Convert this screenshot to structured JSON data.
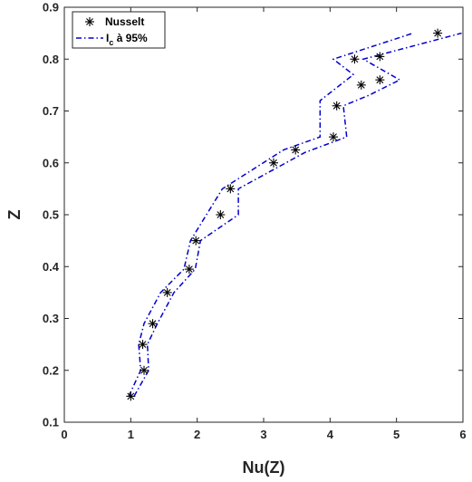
{
  "chart_data": {
    "type": "scatter",
    "xlabel": "Nu(Z)",
    "ylabel": "Z",
    "xlim": [
      0,
      6
    ],
    "ylim": [
      0.1,
      0.9
    ],
    "xticks": [
      "0",
      "1",
      "2",
      "3",
      "4",
      "5",
      "6"
    ],
    "yticks": [
      "0.1",
      "0.2",
      "0.3",
      "0.4",
      "0.5",
      "0.6",
      "0.7",
      "0.8",
      "0.9"
    ],
    "grid": false,
    "legend_position": "top-left",
    "legend": {
      "series_label": "Nusselt",
      "band_label_main": "I",
      "band_label_sub": "c",
      "band_label_rest": " à 95%"
    },
    "series": [
      {
        "name": "Nusselt",
        "marker": "asterisk",
        "color": "#000000",
        "points": [
          [
            1.0,
            0.15
          ],
          [
            1.2,
            0.2
          ],
          [
            1.18,
            0.25
          ],
          [
            1.33,
            0.29
          ],
          [
            1.55,
            0.35
          ],
          [
            1.88,
            0.395
          ],
          [
            1.98,
            0.45
          ],
          [
            2.35,
            0.5
          ],
          [
            2.5,
            0.55
          ],
          [
            3.15,
            0.6
          ],
          [
            3.48,
            0.625
          ],
          [
            4.05,
            0.65
          ],
          [
            4.1,
            0.71
          ],
          [
            4.47,
            0.75
          ],
          [
            4.37,
            0.8
          ],
          [
            4.75,
            0.805
          ],
          [
            4.75,
            0.76
          ],
          [
            5.62,
            0.85
          ]
        ]
      },
      {
        "name": "I_c à 95%",
        "line_style": "dash-dot",
        "color": "#0000cc",
        "band_left": [
          [
            0.97,
            0.15
          ],
          [
            1.15,
            0.2
          ],
          [
            1.12,
            0.25
          ],
          [
            1.2,
            0.29
          ],
          [
            1.45,
            0.35
          ],
          [
            1.8,
            0.395
          ],
          [
            1.9,
            0.45
          ],
          [
            2.38,
            0.55
          ],
          [
            3.3,
            0.625
          ],
          [
            3.85,
            0.65
          ],
          [
            3.85,
            0.72
          ],
          [
            4.35,
            0.77
          ],
          [
            4.05,
            0.8
          ],
          [
            5.25,
            0.85
          ]
        ],
        "band_right": [
          [
            1.05,
            0.15
          ],
          [
            1.27,
            0.2
          ],
          [
            1.25,
            0.25
          ],
          [
            1.4,
            0.29
          ],
          [
            1.65,
            0.35
          ],
          [
            1.97,
            0.395
          ],
          [
            2.05,
            0.45
          ],
          [
            2.62,
            0.5
          ],
          [
            2.62,
            0.55
          ],
          [
            3.62,
            0.62
          ],
          [
            4.25,
            0.65
          ],
          [
            4.2,
            0.71
          ],
          [
            4.58,
            0.73
          ],
          [
            5.05,
            0.76
          ],
          [
            4.5,
            0.8
          ],
          [
            5.98,
            0.85
          ]
        ]
      }
    ]
  }
}
